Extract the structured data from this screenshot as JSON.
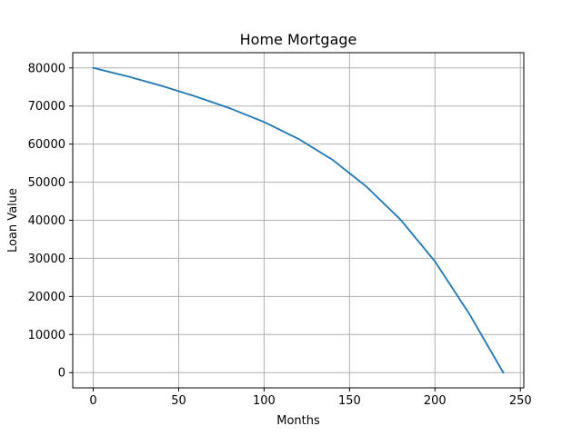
{
  "chart_data": {
    "type": "line",
    "title": "Home Mortgage",
    "xlabel": "Months",
    "ylabel": "Loan Value",
    "xlim": [
      -12,
      252
    ],
    "ylim": [
      -4000,
      84000
    ],
    "xticks": [
      0,
      50,
      100,
      150,
      200,
      250
    ],
    "yticks": [
      0,
      10000,
      20000,
      30000,
      40000,
      50000,
      60000,
      70000,
      80000
    ],
    "grid": true,
    "legend": "none",
    "series": [
      {
        "color": "#1f77b4",
        "x": [
          0,
          20,
          40,
          60,
          80,
          100,
          120,
          140,
          160,
          180,
          200,
          220,
          240
        ],
        "y": [
          80000,
          77800,
          75300,
          72500,
          69400,
          65800,
          61400,
          55900,
          48800,
          40100,
          29200,
          15500,
          0
        ]
      }
    ]
  }
}
